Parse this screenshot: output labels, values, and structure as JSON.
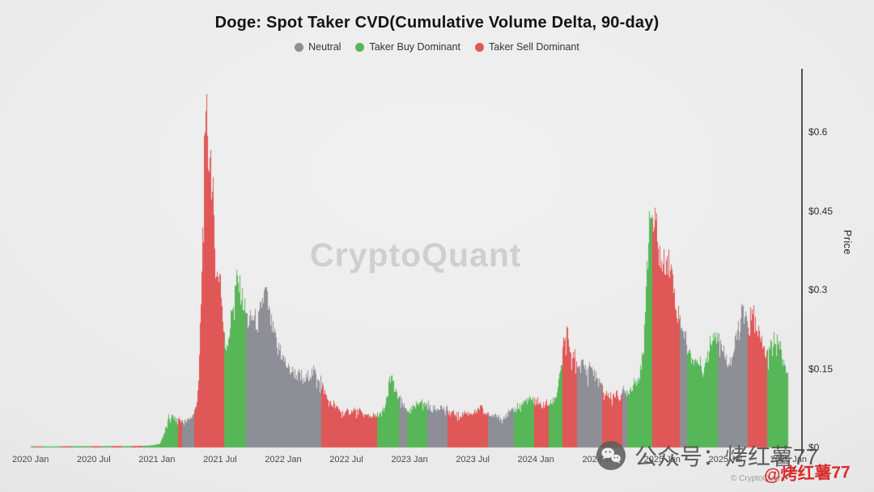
{
  "title": "Doge: Spot Taker CVD(Cumulative Volume Delta, 90-day)",
  "watermark": "CryptoQuant",
  "legend": [
    {
      "label": "Neutral",
      "color": "#8e8e96"
    },
    {
      "label": "Taker Buy Dominant",
      "color": "#57b657"
    },
    {
      "label": "Taker Sell Dominant",
      "color": "#e05757"
    }
  ],
  "overlay": {
    "wechat_text": "公众号：烤红薯77",
    "handle": "@烤红薯77",
    "credit": "© CryptoQuant"
  },
  "chart_data": {
    "type": "bar",
    "title": "Doge: Spot Taker CVD(Cumulative Volume Delta, 90-day)",
    "xlabel": "",
    "ylabel": "Price",
    "legend_position": "top",
    "grid": false,
    "xlim": [
      2019.95,
      2026.1
    ],
    "ylim": [
      0,
      0.72
    ],
    "colors": {
      "neutral": "#8e8e96",
      "buy": "#57b657",
      "sell": "#e05757"
    },
    "series_name": "DOGE price (USD) colored by 90-day spot taker CVD dominance",
    "y_ticks": [
      {
        "v": 0.6,
        "label": "$0.6"
      },
      {
        "v": 0.45,
        "label": "$0.45"
      },
      {
        "v": 0.3,
        "label": "$0.3"
      },
      {
        "v": 0.15,
        "label": "$0.15"
      },
      {
        "v": 0,
        "label": "$0"
      }
    ],
    "x_ticks": [
      {
        "t": 2020.0,
        "label": "2020 Jan"
      },
      {
        "t": 2020.5,
        "label": "2020 Jul"
      },
      {
        "t": 2021.0,
        "label": "2021 Jan"
      },
      {
        "t": 2021.5,
        "label": "2021 Jul"
      },
      {
        "t": 2022.0,
        "label": "2022 Jan"
      },
      {
        "t": 2022.5,
        "label": "2022 Jul"
      },
      {
        "t": 2023.0,
        "label": "2023 Jan"
      },
      {
        "t": 2023.5,
        "label": "2023 Jul"
      },
      {
        "t": 2024.0,
        "label": "2024 Jan"
      },
      {
        "t": 2024.5,
        "label": "2024 Jul"
      },
      {
        "t": 2025.0,
        "label": "2025 Jan"
      },
      {
        "t": 2025.5,
        "label": "2025 Jul"
      },
      {
        "t": 2026.0,
        "label": "2026 Jan"
      }
    ],
    "points": [
      [
        2020.0,
        0.0025,
        "b"
      ],
      [
        2020.06,
        0.0022,
        "s"
      ],
      [
        2020.12,
        0.002,
        "b"
      ],
      [
        2020.2,
        0.0022,
        "b"
      ],
      [
        2020.28,
        0.0025,
        "s"
      ],
      [
        2020.36,
        0.0024,
        "b"
      ],
      [
        2020.44,
        0.0026,
        "b"
      ],
      [
        2020.52,
        0.0024,
        "s"
      ],
      [
        2020.6,
        0.0026,
        "b"
      ],
      [
        2020.68,
        0.0028,
        "s"
      ],
      [
        2020.76,
        0.0026,
        "b"
      ],
      [
        2020.84,
        0.003,
        "s"
      ],
      [
        2020.92,
        0.0032,
        "b"
      ],
      [
        2020.97,
        0.0046,
        "b"
      ],
      [
        2021.02,
        0.007,
        "b"
      ],
      [
        2021.06,
        0.03,
        "b"
      ],
      [
        2021.09,
        0.055,
        "b"
      ],
      [
        2021.12,
        0.06,
        "b"
      ],
      [
        2021.15,
        0.052,
        "b"
      ],
      [
        2021.18,
        0.055,
        "s"
      ],
      [
        2021.21,
        0.05,
        "n"
      ],
      [
        2021.25,
        0.055,
        "n"
      ],
      [
        2021.28,
        0.06,
        "n"
      ],
      [
        2021.31,
        0.08,
        "s"
      ],
      [
        2021.33,
        0.14,
        "s"
      ],
      [
        2021.35,
        0.3,
        "s"
      ],
      [
        2021.37,
        0.52,
        "s"
      ],
      [
        2021.385,
        0.69,
        "s"
      ],
      [
        2021.4,
        0.54,
        "s"
      ],
      [
        2021.42,
        0.58,
        "s"
      ],
      [
        2021.44,
        0.46,
        "s"
      ],
      [
        2021.46,
        0.36,
        "s"
      ],
      [
        2021.48,
        0.32,
        "s"
      ],
      [
        2021.5,
        0.33,
        "s"
      ],
      [
        2021.52,
        0.24,
        "s"
      ],
      [
        2021.54,
        0.19,
        "b"
      ],
      [
        2021.57,
        0.22,
        "b"
      ],
      [
        2021.6,
        0.28,
        "b"
      ],
      [
        2021.63,
        0.32,
        "b"
      ],
      [
        2021.66,
        0.3,
        "b"
      ],
      [
        2021.69,
        0.27,
        "b"
      ],
      [
        2021.72,
        0.24,
        "n"
      ],
      [
        2021.76,
        0.25,
        "n"
      ],
      [
        2021.8,
        0.24,
        "n"
      ],
      [
        2021.83,
        0.28,
        "n"
      ],
      [
        2021.86,
        0.3,
        "n"
      ],
      [
        2021.89,
        0.25,
        "n"
      ],
      [
        2021.92,
        0.22,
        "n"
      ],
      [
        2021.96,
        0.19,
        "n"
      ],
      [
        2022.0,
        0.17,
        "n"
      ],
      [
        2022.04,
        0.15,
        "n"
      ],
      [
        2022.08,
        0.145,
        "n"
      ],
      [
        2022.12,
        0.135,
        "n"
      ],
      [
        2022.16,
        0.125,
        "n"
      ],
      [
        2022.2,
        0.14,
        "n"
      ],
      [
        2022.24,
        0.145,
        "n"
      ],
      [
        2022.28,
        0.135,
        "n"
      ],
      [
        2022.32,
        0.11,
        "s"
      ],
      [
        2022.36,
        0.085,
        "s"
      ],
      [
        2022.4,
        0.08,
        "s"
      ],
      [
        2022.44,
        0.072,
        "s"
      ],
      [
        2022.48,
        0.065,
        "s"
      ],
      [
        2022.52,
        0.068,
        "s"
      ],
      [
        2022.56,
        0.07,
        "s"
      ],
      [
        2022.6,
        0.068,
        "s"
      ],
      [
        2022.64,
        0.062,
        "s"
      ],
      [
        2022.68,
        0.06,
        "s"
      ],
      [
        2022.72,
        0.062,
        "s"
      ],
      [
        2022.76,
        0.064,
        "b"
      ],
      [
        2022.8,
        0.07,
        "b"
      ],
      [
        2022.83,
        0.12,
        "b"
      ],
      [
        2022.85,
        0.14,
        "b"
      ],
      [
        2022.87,
        0.115,
        "b"
      ],
      [
        2022.9,
        0.1,
        "b"
      ],
      [
        2022.93,
        0.09,
        "n"
      ],
      [
        2022.96,
        0.075,
        "n"
      ],
      [
        2023.0,
        0.07,
        "b"
      ],
      [
        2023.04,
        0.08,
        "b"
      ],
      [
        2023.08,
        0.09,
        "b"
      ],
      [
        2023.12,
        0.082,
        "b"
      ],
      [
        2023.16,
        0.076,
        "n"
      ],
      [
        2023.2,
        0.074,
        "n"
      ],
      [
        2023.24,
        0.079,
        "n"
      ],
      [
        2023.28,
        0.072,
        "n"
      ],
      [
        2023.32,
        0.068,
        "s"
      ],
      [
        2023.36,
        0.064,
        "s"
      ],
      [
        2023.4,
        0.062,
        "s"
      ],
      [
        2023.44,
        0.065,
        "s"
      ],
      [
        2023.48,
        0.066,
        "s"
      ],
      [
        2023.52,
        0.068,
        "s"
      ],
      [
        2023.56,
        0.078,
        "s"
      ],
      [
        2023.6,
        0.064,
        "s"
      ],
      [
        2023.64,
        0.062,
        "n"
      ],
      [
        2023.68,
        0.06,
        "n"
      ],
      [
        2023.72,
        0.058,
        "n"
      ],
      [
        2023.76,
        0.06,
        "n"
      ],
      [
        2023.8,
        0.068,
        "n"
      ],
      [
        2023.84,
        0.074,
        "b"
      ],
      [
        2023.88,
        0.082,
        "b"
      ],
      [
        2023.92,
        0.09,
        "b"
      ],
      [
        2023.96,
        0.092,
        "b"
      ],
      [
        2024.0,
        0.09,
        "s"
      ],
      [
        2024.04,
        0.08,
        "s"
      ],
      [
        2024.08,
        0.082,
        "s"
      ],
      [
        2024.12,
        0.085,
        "b"
      ],
      [
        2024.16,
        0.1,
        "b"
      ],
      [
        2024.19,
        0.15,
        "b"
      ],
      [
        2024.22,
        0.2,
        "s"
      ],
      [
        2024.24,
        0.22,
        "s"
      ],
      [
        2024.26,
        0.19,
        "s"
      ],
      [
        2024.28,
        0.16,
        "s"
      ],
      [
        2024.31,
        0.18,
        "s"
      ],
      [
        2024.34,
        0.155,
        "n"
      ],
      [
        2024.37,
        0.16,
        "n"
      ],
      [
        2024.4,
        0.145,
        "n"
      ],
      [
        2024.43,
        0.16,
        "n"
      ],
      [
        2024.46,
        0.14,
        "n"
      ],
      [
        2024.5,
        0.125,
        "n"
      ],
      [
        2024.54,
        0.105,
        "s"
      ],
      [
        2024.58,
        0.098,
        "s"
      ],
      [
        2024.62,
        0.102,
        "s"
      ],
      [
        2024.66,
        0.1,
        "s"
      ],
      [
        2024.7,
        0.105,
        "n"
      ],
      [
        2024.74,
        0.11,
        "b"
      ],
      [
        2024.78,
        0.125,
        "b"
      ],
      [
        2024.82,
        0.14,
        "b"
      ],
      [
        2024.85,
        0.17,
        "b"
      ],
      [
        2024.87,
        0.33,
        "b"
      ],
      [
        2024.89,
        0.4,
        "b"
      ],
      [
        2024.91,
        0.46,
        "b"
      ],
      [
        2024.93,
        0.42,
        "s"
      ],
      [
        2024.95,
        0.43,
        "s"
      ],
      [
        2024.97,
        0.38,
        "s"
      ],
      [
        2025.0,
        0.34,
        "s"
      ],
      [
        2025.03,
        0.37,
        "s"
      ],
      [
        2025.06,
        0.35,
        "s"
      ],
      [
        2025.09,
        0.31,
        "s"
      ],
      [
        2025.12,
        0.26,
        "s"
      ],
      [
        2025.15,
        0.24,
        "n"
      ],
      [
        2025.18,
        0.21,
        "n"
      ],
      [
        2025.21,
        0.18,
        "b"
      ],
      [
        2025.24,
        0.17,
        "b"
      ],
      [
        2025.27,
        0.165,
        "b"
      ],
      [
        2025.3,
        0.16,
        "b"
      ],
      [
        2025.33,
        0.155,
        "b"
      ],
      [
        2025.36,
        0.175,
        "b"
      ],
      [
        2025.39,
        0.21,
        "b"
      ],
      [
        2025.42,
        0.23,
        "b"
      ],
      [
        2025.45,
        0.21,
        "n"
      ],
      [
        2025.48,
        0.185,
        "n"
      ],
      [
        2025.51,
        0.17,
        "n"
      ],
      [
        2025.54,
        0.165,
        "n"
      ],
      [
        2025.57,
        0.19,
        "n"
      ],
      [
        2025.6,
        0.23,
        "n"
      ],
      [
        2025.63,
        0.26,
        "n"
      ],
      [
        2025.66,
        0.24,
        "n"
      ],
      [
        2025.69,
        0.23,
        "s"
      ],
      [
        2025.72,
        0.26,
        "s"
      ],
      [
        2025.75,
        0.23,
        "s"
      ],
      [
        2025.78,
        0.2,
        "s"
      ],
      [
        2025.81,
        0.185,
        "s"
      ],
      [
        2025.84,
        0.175,
        "b"
      ],
      [
        2025.87,
        0.2,
        "b"
      ],
      [
        2025.9,
        0.215,
        "b"
      ],
      [
        2025.93,
        0.195,
        "b"
      ],
      [
        2025.96,
        0.16,
        "b"
      ],
      [
        2025.99,
        0.15,
        "b"
      ]
    ]
  }
}
